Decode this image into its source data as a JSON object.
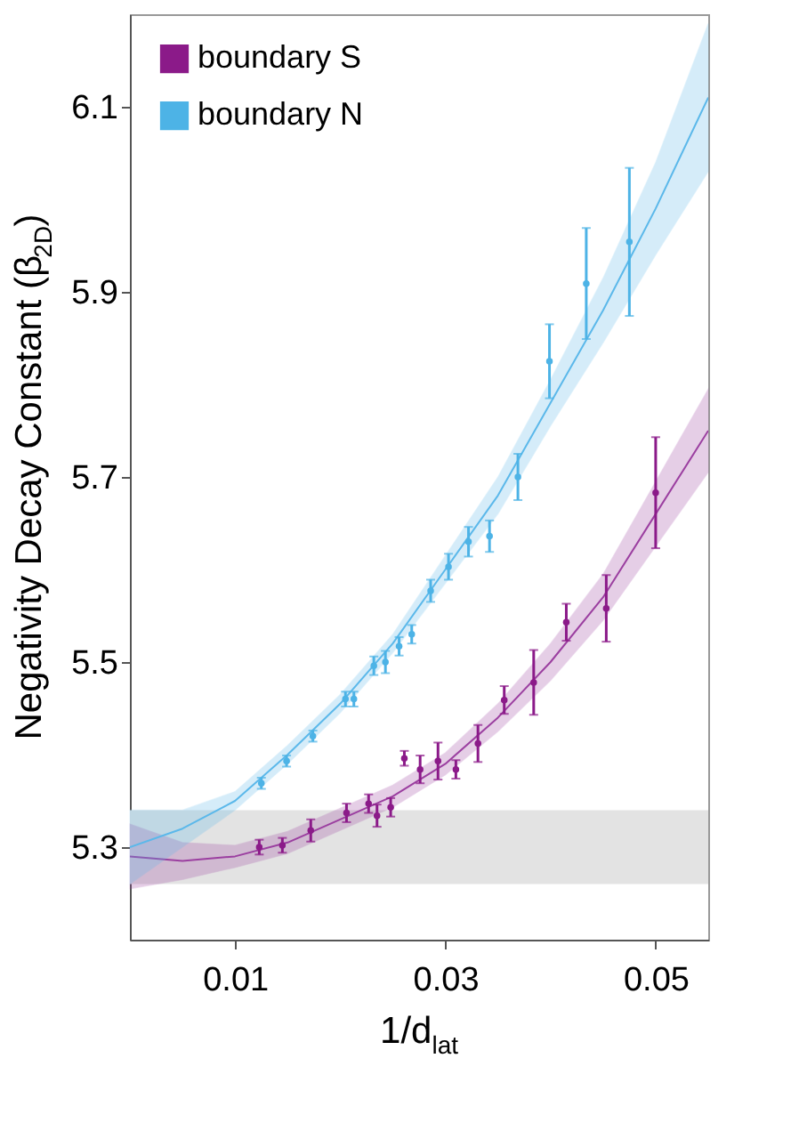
{
  "chart_data": {
    "type": "scatter",
    "xlabel": "1/d$_{lat}$",
    "ylabel": "Negativity Decay Constant (β$_{2D}$)",
    "xlim": [
      0,
      0.055
    ],
    "ylim": [
      5.2,
      6.2
    ],
    "xticks": [
      0.01,
      0.03,
      0.05
    ],
    "yticks": [
      5.3,
      5.5,
      5.7,
      5.9,
      6.1
    ],
    "grid": false,
    "legend": "top left",
    "bands": [
      {
        "axis": "y",
        "from": 5.26,
        "to": 5.34,
        "color": "#e3e3e3"
      }
    ],
    "series": [
      {
        "type": "line",
        "color": "#9b3fa0",
        "line_style": "solid",
        "marker": "none",
        "x": [
          0,
          0.005,
          0.01,
          0.015,
          0.02,
          0.025,
          0.03,
          0.035,
          0.04,
          0.045,
          0.05,
          0.055
        ],
        "values": [
          5.29,
          5.285,
          5.29,
          5.305,
          5.33,
          5.355,
          5.39,
          5.44,
          5.5,
          5.57,
          5.66,
          5.75
        ],
        "lower": [
          5.255,
          5.265,
          5.278,
          5.293,
          5.318,
          5.343,
          5.378,
          5.425,
          5.48,
          5.545,
          5.625,
          5.705
        ],
        "upper": [
          5.325,
          5.305,
          5.302,
          5.317,
          5.342,
          5.367,
          5.402,
          5.455,
          5.52,
          5.595,
          5.695,
          5.795
        ]
      },
      {
        "type": "line",
        "color": "#5bb8ea",
        "line_style": "solid",
        "marker": "none",
        "x": [
          0,
          0.005,
          0.01,
          0.015,
          0.02,
          0.025,
          0.03,
          0.035,
          0.04,
          0.045,
          0.05,
          0.055
        ],
        "values": [
          5.3,
          5.32,
          5.35,
          5.4,
          5.455,
          5.52,
          5.6,
          5.68,
          5.78,
          5.88,
          5.99,
          6.11
        ],
        "lower": [
          5.26,
          5.3,
          5.34,
          5.39,
          5.445,
          5.51,
          5.585,
          5.66,
          5.755,
          5.845,
          5.94,
          6.03
        ],
        "upper": [
          5.34,
          5.34,
          5.36,
          5.41,
          5.465,
          5.53,
          5.615,
          5.7,
          5.805,
          5.915,
          6.04,
          6.19
        ]
      },
      {
        "marker": "circle",
        "name": "boundary S",
        "color": "#8b1a89",
        "x": [
          0.0123,
          0.0145,
          0.0172,
          0.0206,
          0.0227,
          0.0235,
          0.0248,
          0.0261,
          0.0276,
          0.0293,
          0.031,
          0.0331,
          0.0356,
          0.0384,
          0.0415,
          0.0453,
          0.05
        ],
        "values": [
          5.3,
          5.302,
          5.318,
          5.337,
          5.347,
          5.334,
          5.343,
          5.396,
          5.384,
          5.393,
          5.384,
          5.412,
          5.459,
          5.478,
          5.543,
          5.558,
          5.683
        ],
        "errors": [
          0.008,
          0.008,
          0.012,
          0.01,
          0.01,
          0.012,
          0.01,
          0.008,
          0.015,
          0.02,
          0.01,
          0.02,
          0.015,
          0.035,
          0.02,
          0.036,
          0.06
        ]
      },
      {
        "marker": "circle",
        "name": "boundary N",
        "color": "#4db3e6",
        "x": [
          0.0125,
          0.0149,
          0.0174,
          0.0205,
          0.0213,
          0.0232,
          0.0243,
          0.0256,
          0.0268,
          0.0286,
          0.0303,
          0.0322,
          0.0342,
          0.0369,
          0.0399,
          0.0434,
          0.0475
        ],
        "values": [
          5.369,
          5.393,
          5.42,
          5.46,
          5.46,
          5.496,
          5.5,
          5.517,
          5.53,
          5.577,
          5.603,
          5.63,
          5.636,
          5.7,
          5.825,
          5.909,
          5.954
        ],
        "errors": [
          0.006,
          0.006,
          0.006,
          0.008,
          0.008,
          0.01,
          0.012,
          0.01,
          0.01,
          0.012,
          0.014,
          0.016,
          0.017,
          0.025,
          0.04,
          0.06,
          0.08
        ]
      }
    ]
  }
}
